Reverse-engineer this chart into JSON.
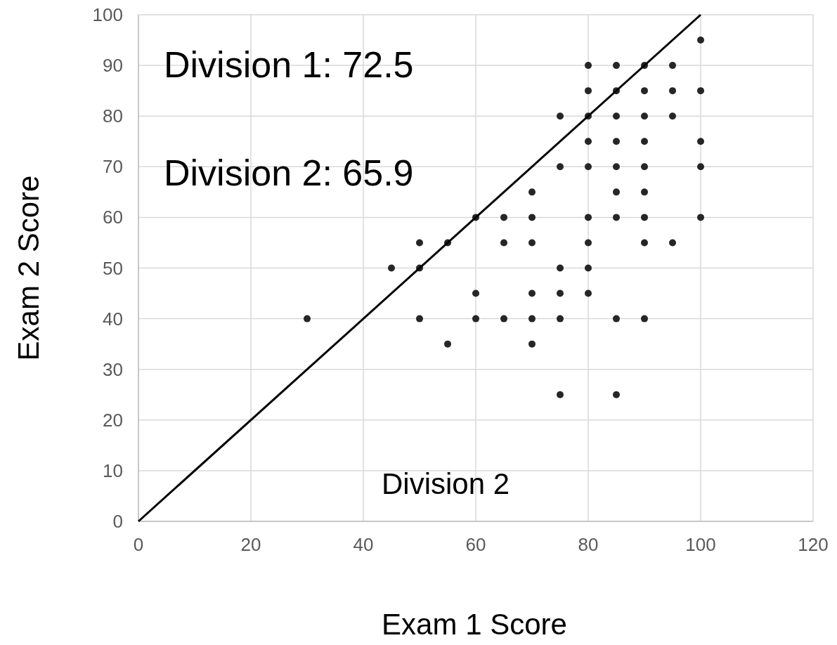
{
  "chart_data": {
    "type": "scatter",
    "xlabel": "Exam 1 Score",
    "ylabel": "Exam 2 Score",
    "xlim": [
      0,
      120
    ],
    "ylim": [
      0,
      100
    ],
    "xticks": [
      0,
      20,
      40,
      60,
      80,
      100,
      120
    ],
    "yticks": [
      0,
      10,
      20,
      30,
      40,
      50,
      60,
      70,
      80,
      90,
      100
    ],
    "grid": true,
    "annotations": [
      "Division 1: 72.5",
      "Division 2: 65.9",
      "Division 2"
    ],
    "series": [
      {
        "color": "#262626",
        "marker": "circle",
        "x": [
          30,
          45,
          50,
          50,
          50,
          55,
          55,
          60,
          60,
          60,
          65,
          65,
          65,
          70,
          70,
          70,
          70,
          70,
          70,
          75,
          75,
          75,
          75,
          75,
          75,
          80,
          80,
          80,
          80,
          80,
          80,
          80,
          80,
          80,
          85,
          85,
          85,
          85,
          85,
          85,
          85,
          85,
          85,
          90,
          90,
          90,
          90,
          90,
          90,
          90,
          90,
          90,
          95,
          95,
          95,
          95,
          100,
          100,
          100,
          100,
          100
        ],
        "values": [
          40,
          50,
          55,
          50,
          40,
          55,
          35,
          60,
          45,
          40,
          60,
          55,
          40,
          65,
          60,
          55,
          45,
          40,
          35,
          80,
          70,
          50,
          45,
          40,
          25,
          90,
          85,
          80,
          75,
          70,
          60,
          55,
          50,
          45,
          90,
          85,
          80,
          75,
          70,
          65,
          60,
          40,
          25,
          90,
          85,
          80,
          75,
          70,
          65,
          60,
          55,
          40,
          90,
          85,
          80,
          55,
          95,
          85,
          75,
          70,
          60
        ]
      },
      {
        "type": "line",
        "color": "#000000",
        "marker": "none",
        "line_style": "solid",
        "x": [
          0,
          100
        ],
        "values": [
          0,
          100
        ]
      }
    ]
  }
}
